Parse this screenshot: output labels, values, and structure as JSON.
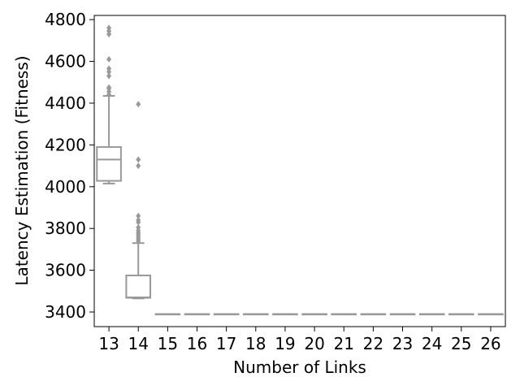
{
  "chart_data": {
    "type": "box",
    "xlabel": "Number of Links",
    "ylabel": "Latency Estimation (Fitness)",
    "categories": [
      "13",
      "14",
      "15",
      "16",
      "17",
      "18",
      "19",
      "20",
      "21",
      "22",
      "23",
      "24",
      "25",
      "26"
    ],
    "yticks": [
      3400,
      3600,
      3800,
      4000,
      4200,
      4400,
      4600,
      4800
    ],
    "ylim": [
      3330,
      4820
    ],
    "grid": false,
    "colors": {
      "box": "#999999",
      "outlier": "#999999"
    },
    "boxes": [
      {
        "category": "13",
        "whisker_low": 4015,
        "q1": 4028,
        "median": 4130,
        "q3": 4190,
        "whisker_high": 4435,
        "outliers": [
          4440,
          4455,
          4470,
          4475,
          4530,
          4550,
          4565,
          4610,
          4730,
          4745,
          4760
        ]
      },
      {
        "category": "14",
        "whisker_low": 3465,
        "q1": 3468,
        "median": 3470,
        "q3": 3575,
        "whisker_high": 3730,
        "outliers": [
          3740,
          3750,
          3760,
          3770,
          3780,
          3790,
          3805,
          3830,
          3840,
          3860,
          4100,
          4130,
          4395
        ]
      },
      {
        "category": "15",
        "whisker_low": 3390,
        "q1": 3390,
        "median": 3390,
        "q3": 3390,
        "whisker_high": 3390,
        "outliers": []
      },
      {
        "category": "16",
        "whisker_low": 3390,
        "q1": 3390,
        "median": 3390,
        "q3": 3390,
        "whisker_high": 3390,
        "outliers": []
      },
      {
        "category": "17",
        "whisker_low": 3390,
        "q1": 3390,
        "median": 3390,
        "q3": 3390,
        "whisker_high": 3390,
        "outliers": []
      },
      {
        "category": "18",
        "whisker_low": 3390,
        "q1": 3390,
        "median": 3390,
        "q3": 3390,
        "whisker_high": 3390,
        "outliers": []
      },
      {
        "category": "19",
        "whisker_low": 3390,
        "q1": 3390,
        "median": 3390,
        "q3": 3390,
        "whisker_high": 3390,
        "outliers": []
      },
      {
        "category": "20",
        "whisker_low": 3390,
        "q1": 3390,
        "median": 3390,
        "q3": 3390,
        "whisker_high": 3390,
        "outliers": []
      },
      {
        "category": "21",
        "whisker_low": 3390,
        "q1": 3390,
        "median": 3390,
        "q3": 3390,
        "whisker_high": 3390,
        "outliers": []
      },
      {
        "category": "22",
        "whisker_low": 3390,
        "q1": 3390,
        "median": 3390,
        "q3": 3390,
        "whisker_high": 3390,
        "outliers": []
      },
      {
        "category": "23",
        "whisker_low": 3390,
        "q1": 3390,
        "median": 3390,
        "q3": 3390,
        "whisker_high": 3390,
        "outliers": []
      },
      {
        "category": "24",
        "whisker_low": 3390,
        "q1": 3390,
        "median": 3390,
        "q3": 3390,
        "whisker_high": 3390,
        "outliers": []
      },
      {
        "category": "25",
        "whisker_low": 3390,
        "q1": 3390,
        "median": 3390,
        "q3": 3390,
        "whisker_high": 3390,
        "outliers": []
      },
      {
        "category": "26",
        "whisker_low": 3390,
        "q1": 3390,
        "median": 3390,
        "q3": 3390,
        "whisker_high": 3390,
        "outliers": []
      }
    ]
  }
}
